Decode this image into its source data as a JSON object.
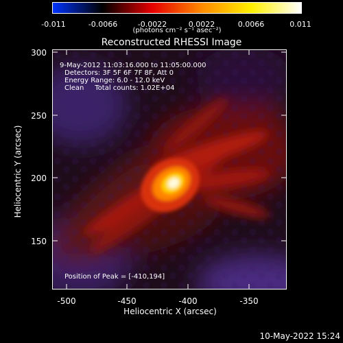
{
  "colorbar": {
    "tick_labels": [
      "-0.011",
      "-0.0066",
      "-0.0022",
      "0.0022",
      "0.0066",
      "0.011"
    ],
    "units": "(photons cm⁻² s⁻¹ asec⁻²)",
    "colors": [
      "#0033ff",
      "#000000",
      "#e60000",
      "#ff8a00",
      "#fff000",
      "#ffffff"
    ]
  },
  "plot": {
    "title": "Reconstructed RHESSI Image",
    "time_range": "9-May-2012 11:03:16.000 to 11:05:00.000",
    "detectors": "Detectors: 3F 5F 6F 7F 8F, Att 0",
    "energy_range": "Energy Range: 6.0 - 12.0 keV",
    "clean_counts": "Clean     Total counts: 1.02E+04",
    "peak_position": "Position of Peak = [-410,194]",
    "x_axis_label": "Heliocentric X (arcsec)",
    "y_axis_label": "Heliocentric Y (arcsec)",
    "x_ticks": [
      "-500",
      "-450",
      "-400",
      "-350"
    ],
    "y_ticks": [
      "300",
      "250",
      "200",
      "150"
    ],
    "x_range": [
      -512,
      -316
    ],
    "y_range": [
      107,
      302
    ],
    "peak": [
      -410,
      194
    ]
  },
  "footer": {
    "date_stamp": "10-May-2022 15:24"
  }
}
